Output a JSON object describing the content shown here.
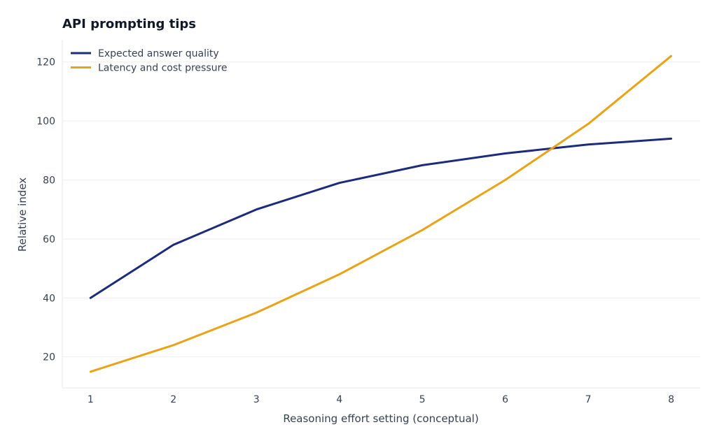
{
  "chart_data": {
    "type": "line",
    "title": "API prompting tips",
    "xlabel": "Reasoning effort setting (conceptual)",
    "ylabel": "Relative index",
    "x": [
      1,
      2,
      3,
      4,
      5,
      6,
      7,
      8
    ],
    "xticks": [
      1,
      2,
      3,
      4,
      5,
      6,
      7,
      8
    ],
    "yticks": [
      20,
      40,
      60,
      80,
      100,
      120
    ],
    "xlim": [
      0.66,
      8.35
    ],
    "ylim": [
      9.5,
      127.5
    ],
    "grid": true,
    "legend_position": "top-left",
    "series": [
      {
        "name": "Expected answer quality",
        "color": "#1c2b7a",
        "values": [
          40,
          58,
          70,
          79,
          85,
          89,
          92,
          94
        ]
      },
      {
        "name": "Latency and cost pressure",
        "color": "#e8a317",
        "values": [
          15,
          24,
          35,
          48,
          63,
          80,
          99,
          122
        ]
      }
    ]
  }
}
